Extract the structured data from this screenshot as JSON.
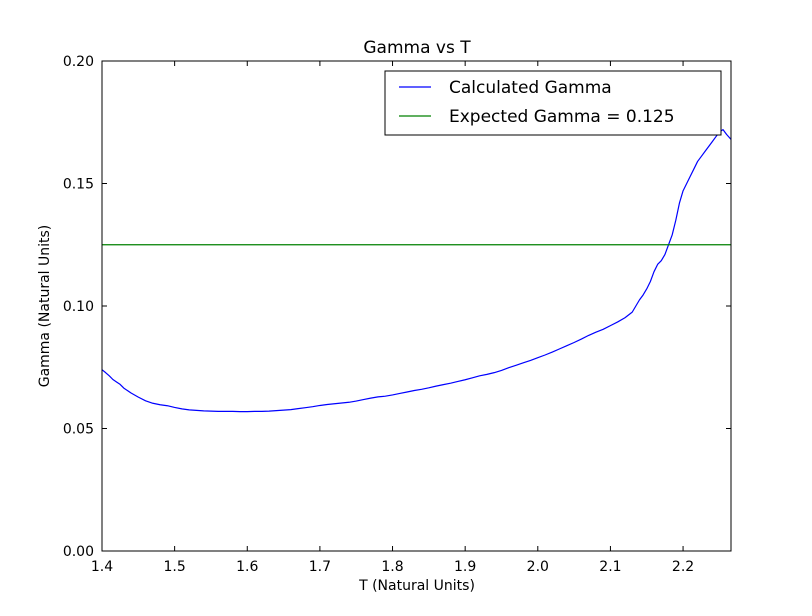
{
  "chart_data": {
    "type": "line",
    "title": "Gamma vs T",
    "xlabel": "T (Natural Units)",
    "ylabel": "Gamma (Natural Units)",
    "xlim": [
      1.4,
      2.266
    ],
    "ylim": [
      0.0,
      0.2
    ],
    "xticks": [
      1.4,
      1.5,
      1.6,
      1.7,
      1.8,
      1.9,
      2.0,
      2.1,
      2.2
    ],
    "xtick_labels": [
      "1.4",
      "1.5",
      "1.6",
      "1.7",
      "1.8",
      "1.9",
      "2.0",
      "2.1",
      "2.2"
    ],
    "yticks": [
      0.0,
      0.05,
      0.1,
      0.15,
      0.2
    ],
    "ytick_labels": [
      "0.00",
      "0.05",
      "0.10",
      "0.15",
      "0.20"
    ],
    "grid": false,
    "legend_position": "top-right",
    "series": [
      {
        "name": "Calculated Gamma",
        "color": "#0000ff",
        "x": [
          1.4,
          1.405,
          1.41,
          1.415,
          1.42,
          1.425,
          1.43,
          1.44,
          1.45,
          1.46,
          1.47,
          1.48,
          1.49,
          1.5,
          1.51,
          1.52,
          1.53,
          1.54,
          1.55,
          1.56,
          1.57,
          1.58,
          1.59,
          1.6,
          1.61,
          1.62,
          1.63,
          1.64,
          1.65,
          1.66,
          1.67,
          1.68,
          1.69,
          1.7,
          1.71,
          1.72,
          1.73,
          1.74,
          1.75,
          1.76,
          1.77,
          1.78,
          1.79,
          1.8,
          1.81,
          1.82,
          1.83,
          1.84,
          1.85,
          1.86,
          1.87,
          1.88,
          1.89,
          1.9,
          1.91,
          1.92,
          1.93,
          1.94,
          1.95,
          1.96,
          1.97,
          1.98,
          1.99,
          2.0,
          2.01,
          2.02,
          2.03,
          2.04,
          2.05,
          2.06,
          2.07,
          2.08,
          2.09,
          2.1,
          2.11,
          2.12,
          2.13,
          2.135,
          2.14,
          2.145,
          2.15,
          2.155,
          2.16,
          2.165,
          2.17,
          2.175,
          2.18,
          2.185,
          2.19,
          2.195,
          2.2,
          2.205,
          2.21,
          2.215,
          2.22,
          2.225,
          2.23,
          2.235,
          2.24,
          2.245,
          2.25,
          2.255,
          2.26,
          2.266
        ],
        "y": [
          0.074,
          0.0728,
          0.0715,
          0.07,
          0.069,
          0.068,
          0.0665,
          0.0645,
          0.0628,
          0.0613,
          0.0603,
          0.0597,
          0.0593,
          0.0586,
          0.058,
          0.0576,
          0.0574,
          0.0572,
          0.0571,
          0.057,
          0.057,
          0.057,
          0.0569,
          0.0569,
          0.057,
          0.057,
          0.0571,
          0.0573,
          0.0575,
          0.0577,
          0.0581,
          0.0585,
          0.0589,
          0.0594,
          0.0598,
          0.0601,
          0.0604,
          0.0607,
          0.0612,
          0.0618,
          0.0624,
          0.0629,
          0.0632,
          0.0637,
          0.0643,
          0.0649,
          0.0655,
          0.066,
          0.0666,
          0.0673,
          0.0679,
          0.0685,
          0.0692,
          0.0699,
          0.0707,
          0.0715,
          0.0721,
          0.0728,
          0.0737,
          0.0748,
          0.0758,
          0.0768,
          0.0778,
          0.0789,
          0.08,
          0.0812,
          0.0825,
          0.0838,
          0.0851,
          0.0865,
          0.088,
          0.0893,
          0.0905,
          0.092,
          0.0935,
          0.0952,
          0.0975,
          0.1,
          0.1025,
          0.1045,
          0.107,
          0.11,
          0.114,
          0.117,
          0.1185,
          0.121,
          0.125,
          0.129,
          0.135,
          0.142,
          0.147,
          0.15,
          0.153,
          0.156,
          0.159,
          0.161,
          0.163,
          0.165,
          0.167,
          0.169,
          0.171,
          0.172,
          0.17,
          0.168
        ]
      },
      {
        "name": "Expected Gamma = 0.125",
        "color": "#008000",
        "x": [
          1.4,
          2.266
        ],
        "y": [
          0.125,
          0.125
        ]
      }
    ]
  }
}
